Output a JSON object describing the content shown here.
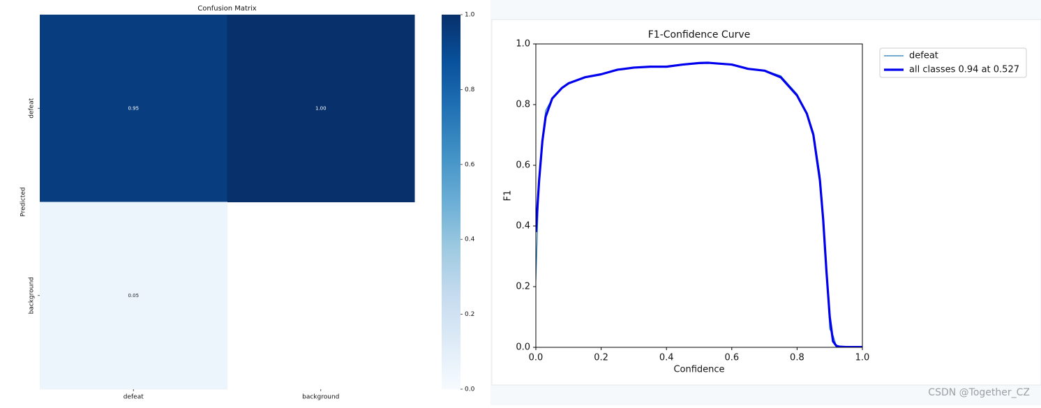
{
  "watermark": "CSDN @Together_CZ",
  "chart_data": [
    {
      "type": "heatmap",
      "title": "Confusion Matrix",
      "ylabel": "Predicted",
      "x_categories": [
        "defeat",
        "background"
      ],
      "y_categories": [
        "defeat",
        "background"
      ],
      "values": [
        [
          0.95,
          1.0
        ],
        [
          0.05,
          null
        ]
      ],
      "value_labels": [
        [
          "0.95",
          "1.00"
        ],
        [
          "0.05",
          null
        ]
      ],
      "colorscale": [
        "#f7fbff",
        "#deebf7",
        "#c6dbef",
        "#9ecae1",
        "#6baed6",
        "#4292c6",
        "#2171b5",
        "#08519c",
        "#08306b"
      ],
      "clim": [
        0,
        1
      ],
      "cticks": [
        {
          "value": 0,
          "label": "0.0"
        },
        {
          "value": 0.2,
          "label": "0.2"
        },
        {
          "value": 0.4,
          "label": "0.4"
        },
        {
          "value": 0.6,
          "label": "0.6"
        },
        {
          "value": 0.8,
          "label": "0.8"
        },
        {
          "value": 1,
          "label": "1.0"
        }
      ]
    },
    {
      "type": "line",
      "title": "F1-Confidence Curve",
      "xlabel": "Confidence",
      "ylabel": "F1",
      "x": [
        0,
        0.01,
        0.02,
        0.03,
        0.05,
        0.08,
        0.1,
        0.15,
        0.2,
        0.25,
        0.3,
        0.35,
        0.4,
        0.45,
        0.5,
        0.527,
        0.55,
        0.6,
        0.65,
        0.7,
        0.75,
        0.8,
        0.83,
        0.85,
        0.87,
        0.88,
        0.89,
        0.9,
        0.91,
        0.92,
        0.93,
        0.95,
        1.0
      ],
      "series": [
        {
          "name": "defeat",
          "color": "#1f77b4",
          "width": 1.2,
          "values": [
            0.22,
            0.57,
            0.69,
            0.78,
            0.82,
            0.855,
            0.87,
            0.892,
            0.9,
            0.915,
            0.922,
            0.925,
            0.924,
            0.932,
            0.937,
            0.938,
            0.936,
            0.931,
            0.918,
            0.913,
            0.895,
            0.835,
            0.77,
            0.71,
            0.57,
            0.43,
            0.26,
            0.06,
            0.04,
            0.005,
            0.002,
            0.001,
            0.001
          ]
        },
        {
          "name": "all classes 0.94 at 0.527",
          "color": "#0000ee",
          "width": 3.2,
          "values": [
            0.38,
            0.55,
            0.68,
            0.76,
            0.82,
            0.855,
            0.87,
            0.89,
            0.9,
            0.915,
            0.922,
            0.925,
            0.925,
            0.932,
            0.937,
            0.938,
            0.936,
            0.932,
            0.918,
            0.912,
            0.89,
            0.83,
            0.77,
            0.7,
            0.55,
            0.42,
            0.25,
            0.1,
            0.02,
            0.005,
            0.002,
            0.001,
            0.001
          ]
        }
      ],
      "xlim": [
        0,
        1
      ],
      "ylim": [
        0,
        1
      ],
      "xticks": [
        {
          "value": 0,
          "label": "0.0"
        },
        {
          "value": 0.2,
          "label": "0.2"
        },
        {
          "value": 0.4,
          "label": "0.4"
        },
        {
          "value": 0.6,
          "label": "0.6"
        },
        {
          "value": 0.8,
          "label": "0.8"
        },
        {
          "value": 1,
          "label": "1.0"
        }
      ],
      "yticks": [
        {
          "value": 0,
          "label": "0.0"
        },
        {
          "value": 0.2,
          "label": "0.2"
        },
        {
          "value": 0.4,
          "label": "0.4"
        },
        {
          "value": 0.6,
          "label": "0.6"
        },
        {
          "value": 0.8,
          "label": "0.8"
        },
        {
          "value": 1,
          "label": "1.0"
        }
      ],
      "legend": "outside right",
      "grid": false
    }
  ]
}
